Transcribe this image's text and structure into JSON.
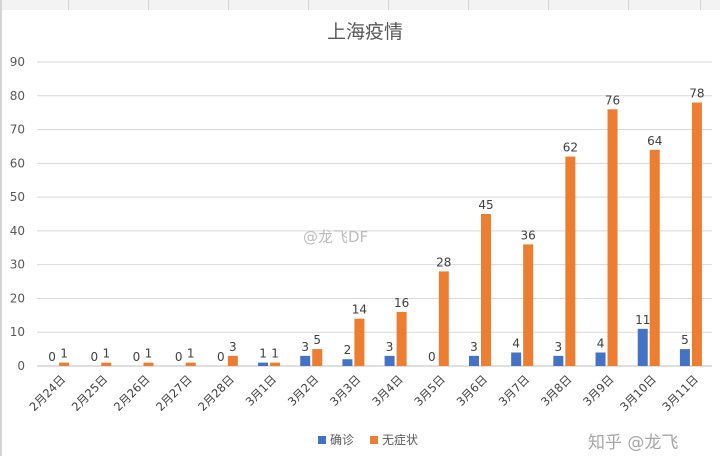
{
  "chart_data": {
    "type": "bar",
    "title": "上海疫情",
    "categories": [
      "2月24日",
      "2月25日",
      "2月26日",
      "2月27日",
      "2月28日",
      "3月1日",
      "3月2日",
      "3月3日",
      "3月4日",
      "3月5日",
      "3月6日",
      "3月7日",
      "3月8日",
      "3月9日",
      "3月10日",
      "3月11日"
    ],
    "series": [
      {
        "name": "确诊",
        "color": "#4472c4",
        "values": [
          0,
          0,
          0,
          0,
          0,
          1,
          3,
          2,
          3,
          0,
          3,
          4,
          3,
          4,
          11,
          5
        ]
      },
      {
        "name": "无症状",
        "color": "#ed7d31",
        "values": [
          1,
          1,
          1,
          1,
          3,
          1,
          5,
          14,
          16,
          28,
          45,
          36,
          62,
          76,
          64,
          78
        ]
      }
    ],
    "ylim": [
      0,
      90
    ],
    "yticks": [
      0,
      10,
      20,
      30,
      40,
      50,
      60,
      70,
      80,
      90
    ],
    "grid": true,
    "legend": "bottom",
    "data_labels": true
  },
  "watermark": "@龙飞DF",
  "source_mark": "知乎 @龙飞"
}
